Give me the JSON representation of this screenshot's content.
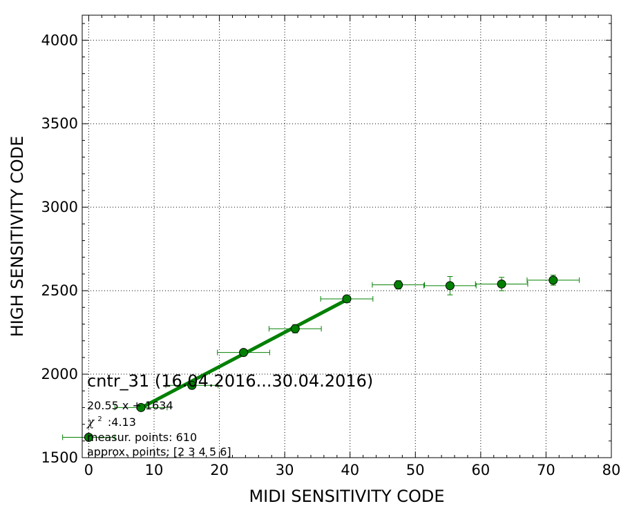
{
  "chart_data": {
    "type": "scatter",
    "title": "cntr_31 (16.04.2016...30.04.2016)",
    "xlabel": "MIDI SENSITIVITY CODE",
    "ylabel": "HIGH SENSITIVITY CODE",
    "xlim": [
      -1,
      80
    ],
    "ylim": [
      1500,
      4150
    ],
    "x_ticks": [
      "0",
      "10",
      "20",
      "30",
      "40",
      "50",
      "60",
      "70",
      "80"
    ],
    "y_ticks": [
      "1500",
      "2000",
      "2500",
      "3000",
      "3500",
      "4000"
    ],
    "grid": true,
    "colors": {
      "points": "#008000",
      "fit_line": "#008000",
      "errorbars": "#008000"
    },
    "points": [
      {
        "x": 0,
        "y": 1622,
        "xerr": 4.0,
        "yerr": 8
      },
      {
        "x": 8.0,
        "y": 1800,
        "xerr": 4.0,
        "yerr": 10
      },
      {
        "x": 15.8,
        "y": 1933,
        "xerr": 4.0,
        "yerr": 12
      },
      {
        "x": 23.7,
        "y": 2130,
        "xerr": 4.0,
        "yerr": 12
      },
      {
        "x": 31.6,
        "y": 2272,
        "xerr": 4.0,
        "yerr": 25
      },
      {
        "x": 39.5,
        "y": 2451,
        "xerr": 4.0,
        "yerr": 10
      },
      {
        "x": 47.4,
        "y": 2535,
        "xerr": 4.0,
        "yerr": 25
      },
      {
        "x": 55.3,
        "y": 2530,
        "xerr": 4.0,
        "yerr": 55
      },
      {
        "x": 63.2,
        "y": 2540,
        "xerr": 4.0,
        "yerr": 40
      },
      {
        "x": 71.1,
        "y": 2563,
        "xerr": 4.0,
        "yerr": 30
      }
    ],
    "fit_line": {
      "slope": 20.55,
      "intercept": 1634,
      "x_range": [
        8.0,
        39.5
      ]
    },
    "annotations": {
      "formula": "20.55 x + 1634",
      "chi2_symbol": "χ",
      "chi2_sup": "2",
      "chi2_value": ":4.13",
      "measur_points": "measur. points: 610",
      "approx_points": "approx. points: [2 3 4 5 6]"
    }
  }
}
